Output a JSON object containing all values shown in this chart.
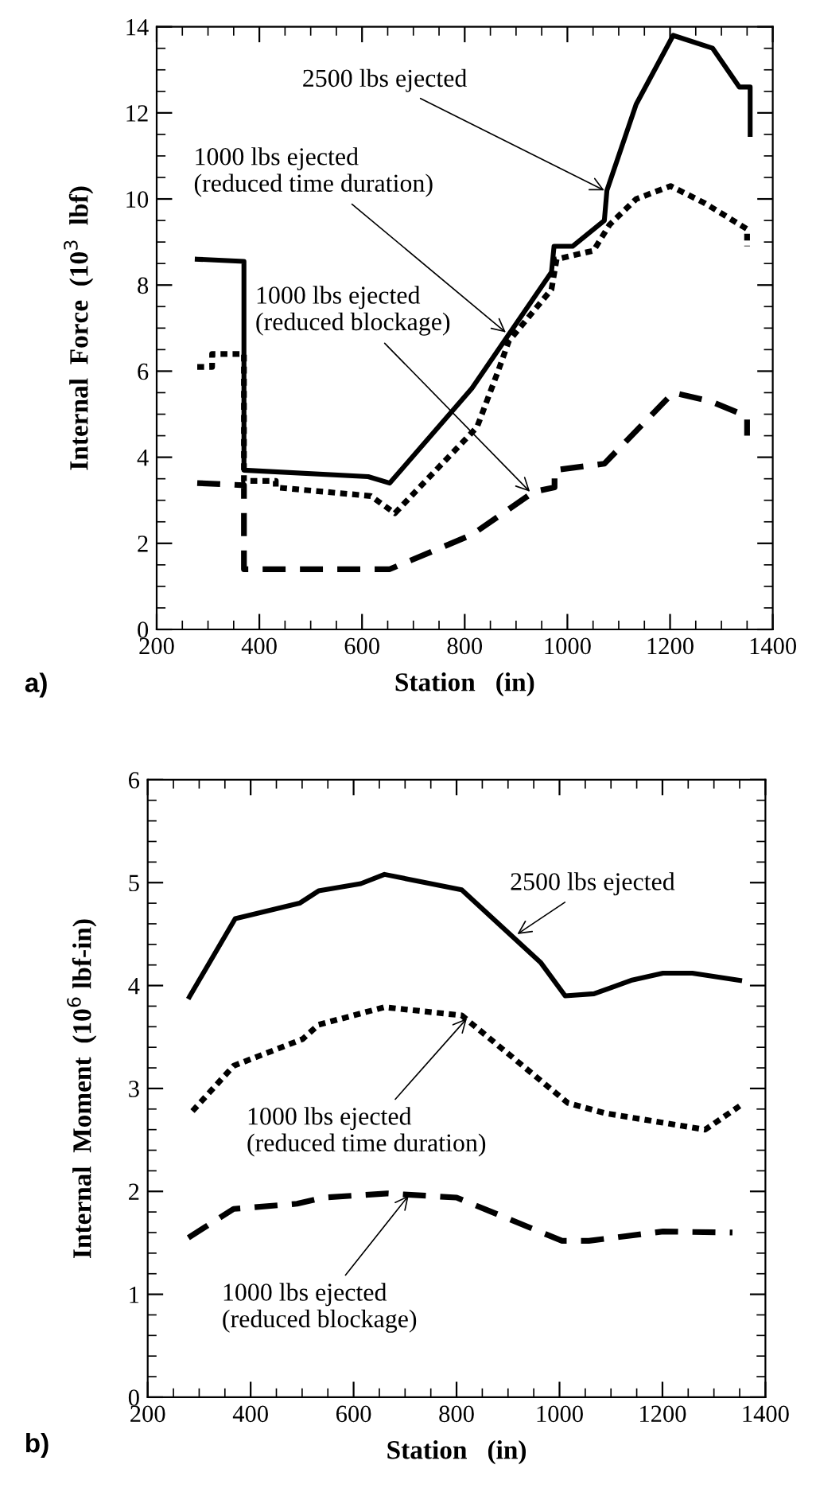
{
  "chart_data": [
    {
      "type": "line",
      "xlabel": "Station   (in)",
      "ylabel": "Internal  Force  (10$^{3}$  lbf)",
      "xlim": [
        200,
        1400
      ],
      "xticks": [
        200,
        400,
        600,
        800,
        1000,
        1200,
        1400
      ],
      "ylim": [
        0,
        14
      ],
      "yticks": [
        0,
        2,
        4,
        6,
        8,
        10,
        12,
        14
      ],
      "grid": false,
      "legend": false,
      "marker": "none",
      "series": [
        {
          "color": "#000000",
          "line_style": "solid",
          "x": [
            279,
            370,
            370,
            612,
            654,
            814,
            969,
            974,
            1010,
            1072,
            1077,
            1134,
            1206,
            1283,
            1335,
            1356,
            1356
          ],
          "values": [
            8.6,
            8.55,
            3.7,
            3.55,
            3.4,
            5.6,
            8.3,
            8.9,
            8.9,
            9.5,
            10.2,
            12.2,
            13.8,
            13.5,
            12.6,
            12.6,
            11.5
          ]
        },
        {
          "color": "#000000",
          "line_style": "dotted",
          "x": [
            279,
            308,
            308,
            370,
            370,
            432,
            432,
            617,
            664,
            824,
            865,
            886,
            969,
            979,
            1051,
            1082,
            1134,
            1201,
            1268,
            1350,
            1350
          ],
          "values": [
            6.1,
            6.1,
            6.4,
            6.4,
            3.45,
            3.45,
            3.3,
            3.1,
            2.7,
            4.7,
            6.0,
            6.7,
            7.9,
            8.6,
            8.8,
            9.4,
            10.0,
            10.3,
            9.9,
            9.3,
            8.9
          ]
        },
        {
          "color": "#000000",
          "line_style": "dashed",
          "x": [
            279,
            370,
            370,
            654,
            814,
            935,
            975,
            975,
            1072,
            1206,
            1279,
            1350,
            1350
          ],
          "values": [
            3.4,
            3.35,
            1.4,
            1.4,
            2.2,
            3.2,
            3.3,
            3.7,
            3.85,
            5.5,
            5.3,
            4.95,
            4.5
          ]
        }
      ],
      "annotations": [
        {
          "text": "2500 lbs ejected",
          "x": 1072,
          "y": 10.2
        },
        {
          "text": "1000 lbs ejected\n(reduced time duration)",
          "x": 880,
          "y": 6.9
        },
        {
          "text": "1000 lbs ejected\n(reduced blockage)",
          "x": 927,
          "y": 3.2
        },
        "a)"
      ]
    },
    {
      "type": "line",
      "xlabel": "Station   (in)",
      "ylabel": "Internal  Moment  (10$^{6}$ lbf-in)",
      "xlim": [
        200,
        1400
      ],
      "xticks": [
        200,
        400,
        600,
        800,
        1000,
        1200,
        1400
      ],
      "ylim": [
        0,
        6
      ],
      "yticks": [
        0,
        1,
        2,
        3,
        4,
        5,
        6
      ],
      "grid": false,
      "legend": false,
      "marker": "none",
      "series": [
        {
          "color": "#000000",
          "line_style": "solid",
          "x": [
            281,
            370,
            495,
            532,
            614,
            660,
            810,
            964,
            1011,
            1067,
            1139,
            1201,
            1258,
            1350
          ],
          "values": [
            3.89,
            4.65,
            4.8,
            4.92,
            4.99,
            5.08,
            4.93,
            4.22,
            3.9,
            3.92,
            4.05,
            4.12,
            4.12,
            4.05
          ]
        },
        {
          "color": "#000000",
          "line_style": "dotted",
          "x": [
            287,
            367,
            501,
            532,
            660,
            810,
            1016,
            1088,
            1283,
            1350
          ],
          "values": [
            2.78,
            3.22,
            3.48,
            3.62,
            3.79,
            3.71,
            2.86,
            2.76,
            2.6,
            2.83
          ]
        },
        {
          "color": "#000000",
          "line_style": "dashed",
          "x": [
            279,
            367,
            490,
            542,
            665,
            800,
            1005,
            1057,
            1201,
            1336
          ],
          "values": [
            1.55,
            1.83,
            1.88,
            1.94,
            1.98,
            1.94,
            1.52,
            1.52,
            1.61,
            1.6
          ]
        }
      ],
      "annotations": [
        {
          "text": "2500 lbs ejected",
          "x": 918,
          "y": 4.5
        },
        {
          "text": "1000 lbs ejected\n(reduced time duration)",
          "x": 820,
          "y": 3.68
        },
        {
          "text": "1000 lbs ejected\n(reduced blockage)",
          "x": 707,
          "y": 1.96
        },
        "b)"
      ]
    }
  ]
}
